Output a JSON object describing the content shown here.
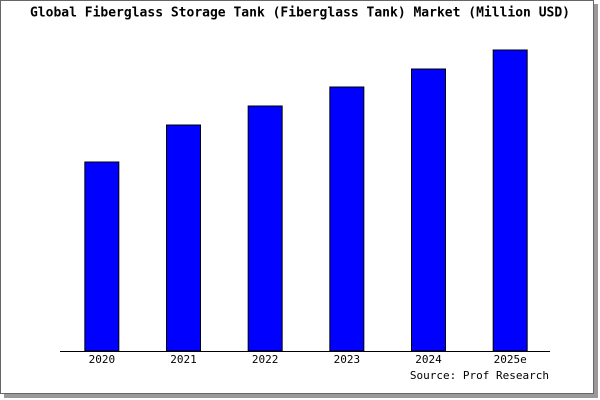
{
  "chart_data": {
    "type": "bar",
    "title": "Global Fiberglass Storage Tank (Fiberglass Tank) Market (Million USD)",
    "source": "Source: Prof Research",
    "categories": [
      "2020",
      "2021",
      "2022",
      "2023",
      "2024",
      "2025e"
    ],
    "values": [
      189,
      226,
      245,
      264,
      282,
      301
    ],
    "color": "#0000ff",
    "ylim": [
      0,
      301
    ]
  }
}
